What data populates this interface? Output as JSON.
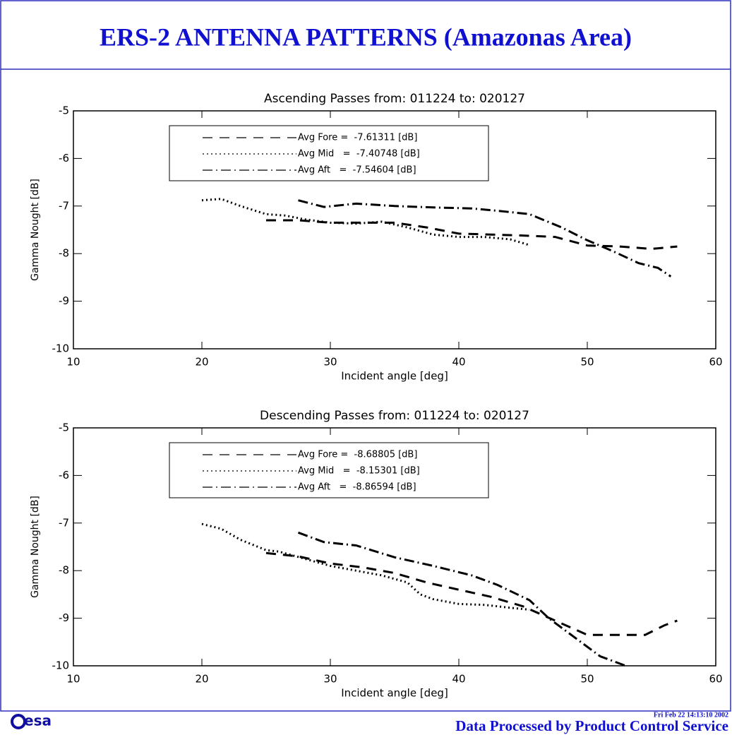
{
  "header": {
    "title": "ERS-2 ANTENNA PATTERNS (Amazonas Area)"
  },
  "chart_data": [
    {
      "type": "line",
      "title": "Ascending Passes from: 011224 to: 020127",
      "x_label": "Incident angle [deg]",
      "y_label": "Gamma Nought [dB]",
      "xlim": [
        10,
        60
      ],
      "xticks": [
        10,
        20,
        30,
        40,
        50,
        60
      ],
      "ylim": [
        -10,
        -5
      ],
      "yticks": [
        -10,
        -9,
        -8,
        -7,
        -6,
        -5
      ],
      "series": [
        {
          "name": "Avg Fore =  -7.61311 [dB]",
          "color": "#000000",
          "linestyle": "dashed",
          "x": [
            25,
            27.5,
            30,
            32.5,
            35,
            37.5,
            40,
            42.5,
            45,
            47.5,
            50,
            52.5,
            55,
            57
          ],
          "values": [
            -7.3,
            -7.3,
            -7.35,
            -7.35,
            -7.35,
            -7.45,
            -7.58,
            -7.6,
            -7.62,
            -7.65,
            -7.83,
            -7.85,
            -7.9,
            -7.85
          ]
        },
        {
          "name": "Avg Mid   =  -7.40748 [dB]",
          "color": "#000000",
          "linestyle": "dotted",
          "x": [
            20,
            21.5,
            23,
            25,
            26.5,
            28,
            30,
            32,
            34,
            36,
            38,
            40,
            42,
            44,
            45.5
          ],
          "values": [
            -6.88,
            -6.85,
            -7.0,
            -7.17,
            -7.2,
            -7.28,
            -7.35,
            -7.37,
            -7.33,
            -7.45,
            -7.6,
            -7.65,
            -7.65,
            -7.7,
            -7.82
          ]
        },
        {
          "name": "Avg Aft   =  -7.54604 [dB]",
          "color": "#000000",
          "linestyle": "dashdot",
          "x": [
            27.5,
            29.5,
            32,
            35,
            38,
            41,
            43,
            45.5,
            48,
            50,
            52,
            54,
            55.5,
            56.5
          ],
          "values": [
            -6.88,
            -7.02,
            -6.95,
            -7.0,
            -7.03,
            -7.05,
            -7.1,
            -7.17,
            -7.45,
            -7.72,
            -7.95,
            -8.2,
            -8.3,
            -8.48
          ]
        }
      ]
    },
    {
      "type": "line",
      "title": "Descending Passes from: 011224 to: 020127",
      "x_label": "Incident angle [deg]",
      "y_label": "Gamma Nought [dB]",
      "xlim": [
        10,
        60
      ],
      "xticks": [
        10,
        20,
        30,
        40,
        50,
        60
      ],
      "ylim": [
        -10,
        -5
      ],
      "yticks": [
        -10,
        -9,
        -8,
        -7,
        -6,
        -5
      ],
      "series": [
        {
          "name": "Avg Fore =  -8.68805 [dB]",
          "color": "#000000",
          "linestyle": "dashed",
          "x": [
            25,
            27.5,
            30,
            32.5,
            35,
            37.5,
            40,
            42.5,
            45,
            47.5,
            50,
            52.5,
            54.5,
            56,
            57
          ],
          "values": [
            -7.63,
            -7.7,
            -7.85,
            -7.93,
            -8.05,
            -8.25,
            -8.4,
            -8.55,
            -8.75,
            -9.05,
            -9.35,
            -9.35,
            -9.35,
            -9.15,
            -9.05
          ]
        },
        {
          "name": "Avg Mid   =  -8.15301 [dB]",
          "color": "#000000",
          "linestyle": "dotted",
          "x": [
            20,
            21.5,
            23,
            25,
            26,
            28,
            30,
            32,
            34,
            36,
            37,
            38,
            40,
            42,
            44,
            45.5
          ],
          "values": [
            -7.02,
            -7.12,
            -7.35,
            -7.57,
            -7.6,
            -7.75,
            -7.9,
            -8.0,
            -8.1,
            -8.25,
            -8.5,
            -8.6,
            -8.7,
            -8.72,
            -8.78,
            -8.82
          ]
        },
        {
          "name": "Avg Aft   =  -8.86594 [dB]",
          "color": "#000000",
          "linestyle": "dashdot",
          "x": [
            27.5,
            29.5,
            32,
            35,
            38,
            41,
            43,
            45.5,
            47,
            49,
            51,
            53
          ],
          "values": [
            -7.2,
            -7.4,
            -7.47,
            -7.72,
            -7.9,
            -8.1,
            -8.3,
            -8.62,
            -9.0,
            -9.4,
            -9.8,
            -10.0
          ]
        }
      ]
    }
  ],
  "footer": {
    "logo": "esa",
    "timestamp": "Fri Feb 22 14:13:10 2002",
    "credit": "Data Processed by Product Control Service"
  }
}
